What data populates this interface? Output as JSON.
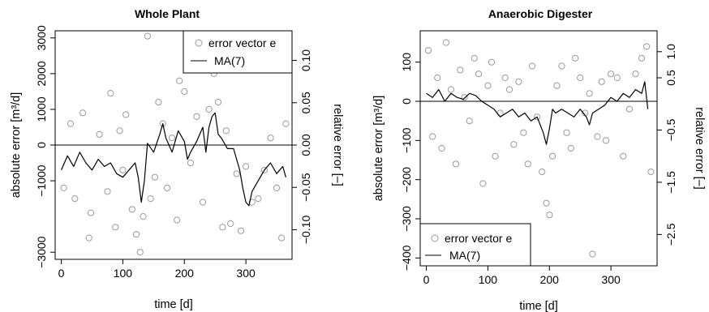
{
  "chart_data": [
    {
      "type": "scatter",
      "title": "Whole Plant",
      "xlabel": "time [d]",
      "ylabel": "absolute error [m³/d]",
      "y2label": "relative error [–]",
      "xlim": [
        -10,
        375
      ],
      "ylim": [
        -3200,
        3200
      ],
      "y2lim": [
        -0.135,
        0.135
      ],
      "xticks": [
        "0",
        "100",
        "200",
        "300"
      ],
      "yticks": [
        "−3000",
        "−1000",
        "0",
        "1000",
        "2000",
        "3000"
      ],
      "y2ticks": [
        "−0.10",
        "−0.05",
        "0.00",
        "0.05",
        "0.10"
      ],
      "hline": 0,
      "legend_position": "top-right",
      "series": [
        {
          "name": "error vector e",
          "type": "scatter",
          "color": "#9a9a9a",
          "x": [
            4,
            15,
            22,
            35,
            45,
            48,
            62,
            75,
            80,
            88,
            95,
            100,
            105,
            115,
            122,
            128,
            133,
            140,
            145,
            152,
            158,
            165,
            172,
            180,
            188,
            192,
            200,
            210,
            220,
            230,
            240,
            248,
            255,
            262,
            268,
            275,
            285,
            292,
            300,
            310,
            320,
            330,
            340,
            350,
            358,
            365
          ],
          "y": [
            -1200,
            600,
            -1500,
            900,
            -2600,
            -1900,
            300,
            -1300,
            1450,
            -2300,
            400,
            -700,
            850,
            -1800,
            -2500,
            -3000,
            -2000,
            3050,
            -1500,
            -900,
            1200,
            600,
            -1200,
            200,
            -2100,
            1800,
            1500,
            -500,
            800,
            -1600,
            1000,
            2000,
            1200,
            -2300,
            400,
            -2200,
            -800,
            -2400,
            -600,
            -1600,
            -1500,
            -700,
            200,
            -1200,
            -2600,
            600
          ]
        },
        {
          "name": "MA(7)",
          "type": "line",
          "color": "#000000",
          "x": [
            0,
            10,
            20,
            30,
            40,
            50,
            60,
            70,
            80,
            90,
            100,
            110,
            120,
            125,
            130,
            135,
            140,
            150,
            160,
            165,
            170,
            180,
            190,
            200,
            205,
            210,
            220,
            230,
            235,
            240,
            245,
            250,
            255,
            260,
            270,
            280,
            290,
            295,
            300,
            305,
            310,
            320,
            330,
            340,
            350,
            360,
            365
          ],
          "y": [
            -700,
            -300,
            -600,
            -200,
            -500,
            -700,
            -400,
            -600,
            -500,
            -800,
            -900,
            -700,
            -500,
            -900,
            -1600,
            -1000,
            50,
            -200,
            300,
            600,
            200,
            -200,
            400,
            100,
            -400,
            -200,
            100,
            500,
            -200,
            500,
            800,
            900,
            300,
            200,
            -100,
            -100,
            -700,
            -1200,
            -1600,
            -1700,
            -1300,
            -1000,
            -700,
            -500,
            -800,
            -600,
            -900
          ]
        }
      ]
    },
    {
      "type": "scatter",
      "title": "Anaerobic Digester",
      "xlabel": "time [d]",
      "ylabel": "absolute error [m³/d]",
      "y2label": "relative error [–]",
      "xlim": [
        -10,
        375
      ],
      "ylim": [
        -420,
        180
      ],
      "y2lim": [
        -3.1,
        1.4
      ],
      "xticks": [
        "0",
        "100",
        "200",
        "300"
      ],
      "yticks": [
        "−400",
        "−300",
        "−200",
        "−100",
        "0",
        "100"
      ],
      "y2ticks": [
        "−2.5",
        "−1.5",
        "−0.5",
        "0.5",
        "1.0"
      ],
      "hline": 0,
      "legend_position": "bottom-left",
      "series": [
        {
          "name": "error vector e",
          "type": "scatter",
          "color": "#9a9a9a",
          "x": [
            3,
            10,
            18,
            25,
            32,
            40,
            48,
            55,
            62,
            70,
            78,
            85,
            92,
            100,
            106,
            112,
            120,
            128,
            135,
            142,
            150,
            158,
            165,
            172,
            180,
            188,
            195,
            200,
            205,
            212,
            220,
            228,
            235,
            242,
            250,
            258,
            265,
            270,
            278,
            285,
            292,
            300,
            310,
            320,
            330,
            340,
            350,
            358,
            365
          ],
          "y": [
            130,
            -90,
            60,
            -120,
            150,
            30,
            -160,
            80,
            10,
            -50,
            110,
            70,
            -210,
            40,
            100,
            -140,
            -30,
            60,
            30,
            -110,
            50,
            -80,
            -160,
            90,
            -40,
            -180,
            -260,
            -290,
            -140,
            40,
            90,
            -80,
            -120,
            110,
            60,
            -30,
            20,
            -390,
            -90,
            50,
            -100,
            70,
            60,
            -140,
            -20,
            70,
            110,
            140,
            -180
          ]
        },
        {
          "name": "MA(7)",
          "type": "line",
          "color": "#000000",
          "x": [
            0,
            10,
            20,
            30,
            40,
            50,
            60,
            70,
            80,
            90,
            100,
            110,
            120,
            130,
            140,
            150,
            160,
            170,
            180,
            185,
            190,
            195,
            200,
            205,
            210,
            220,
            230,
            240,
            250,
            260,
            265,
            270,
            280,
            290,
            300,
            310,
            320,
            330,
            340,
            350,
            355,
            360
          ],
          "y": [
            20,
            10,
            30,
            0,
            20,
            10,
            5,
            20,
            15,
            0,
            -10,
            -20,
            -40,
            -30,
            -20,
            -40,
            -30,
            -50,
            -40,
            -60,
            -80,
            -110,
            -70,
            -20,
            -30,
            -20,
            -30,
            -40,
            -20,
            -40,
            -60,
            -30,
            -20,
            -10,
            10,
            0,
            20,
            10,
            30,
            20,
            50,
            -20
          ]
        }
      ]
    }
  ]
}
